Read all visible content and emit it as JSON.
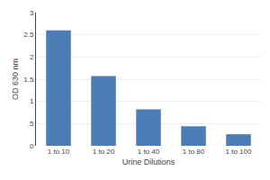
{
  "chart_data": {
    "type": "bar",
    "categories": [
      "1 to 10",
      "1 to 20",
      "1 to 40",
      "1 to 80",
      "1 to 100"
    ],
    "values": [
      2.6,
      1.57,
      0.82,
      0.44,
      0.26
    ],
    "color": "#4c7db5",
    "xlabel": "Urine Dilutions",
    "ylabel": "OD 630 nm",
    "ylim": [
      0,
      3
    ],
    "yticks": [
      0,
      {
        "value": 0.5,
        "label": ".5"
      },
      1,
      1.5,
      2,
      2.5,
      3
    ],
    "grid": true
  }
}
